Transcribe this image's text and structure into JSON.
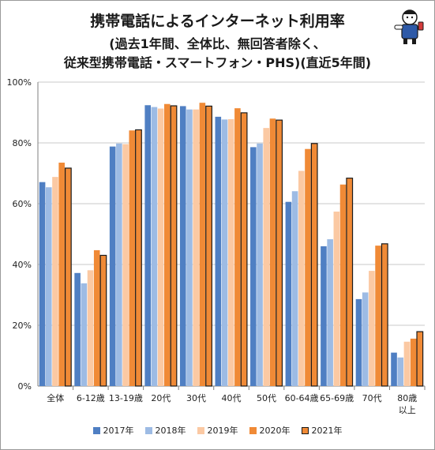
{
  "title_lines": [
    "携帯電話によるインターネット利用率",
    "(過去1年間、全体比、無回答者除く、",
    "従来型携帯電話・スマートフォン・PHS)(直近5年間)"
  ],
  "colors": {
    "series": [
      "#4f7fc3",
      "#9dbbe4",
      "#fbc9a3",
      "#f08a36",
      "#f08a36"
    ],
    "series_stroke": [
      "none",
      "none",
      "none",
      "none",
      "#1a1a1a"
    ],
    "grid": "#c8c8c8",
    "axis": "#7f7f7f"
  },
  "chart_data": {
    "type": "bar",
    "title": "携帯電話によるインターネット利用率(過去1年間、全体比、無回答者除く、従来型携帯電話・スマートフォン・PHS)(直近5年間)",
    "categories": [
      "全体",
      "6-12歳",
      "13-19歳",
      "20代",
      "30代",
      "40代",
      "50代",
      "60-64歳",
      "65-69歳",
      "70代",
      "80歳以上"
    ],
    "category_lines": [
      [
        "全体"
      ],
      [
        "6-12歳"
      ],
      [
        "13-19歳"
      ],
      [
        "20代"
      ],
      [
        "30代"
      ],
      [
        "40代"
      ],
      [
        "50代"
      ],
      [
        "60-64歳"
      ],
      [
        "65-69歳"
      ],
      [
        "70代"
      ],
      [
        "80歳",
        "以上"
      ]
    ],
    "series": [
      {
        "name": "2017年",
        "values": [
          67.1,
          37.2,
          78.8,
          92.4,
          92.1,
          88.6,
          78.6,
          60.6,
          46.0,
          28.6,
          11.0
        ]
      },
      {
        "name": "2018年",
        "values": [
          65.4,
          33.8,
          79.8,
          91.8,
          91.0,
          87.7,
          79.8,
          64.1,
          48.3,
          30.8,
          9.4
        ]
      },
      {
        "name": "2019年",
        "values": [
          68.8,
          38.1,
          79.6,
          91.3,
          91.0,
          87.8,
          84.9,
          70.8,
          57.4,
          37.9,
          14.6
        ]
      },
      {
        "name": "2020年",
        "values": [
          73.5,
          44.7,
          84.1,
          92.8,
          93.2,
          91.4,
          88.0,
          78.0,
          66.3,
          46.2,
          15.6
        ]
      },
      {
        "name": "2021年",
        "values": [
          71.7,
          43.0,
          84.3,
          92.2,
          92.1,
          89.9,
          87.5,
          79.8,
          68.4,
          46.8,
          17.9
        ]
      }
    ],
    "yticks": [
      "0%",
      "20%",
      "40%",
      "60%",
      "80%",
      "100%"
    ],
    "ylim": [
      0,
      100
    ],
    "grid": true,
    "legend_position": "bottom"
  }
}
